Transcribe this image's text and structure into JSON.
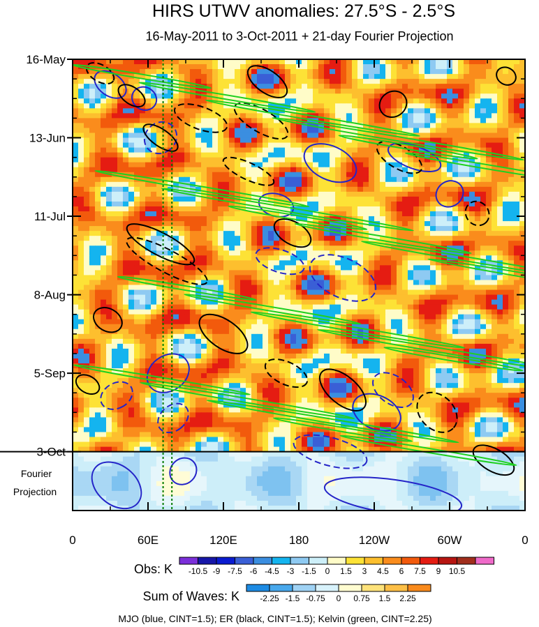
{
  "chart_data": {
    "type": "heatmap",
    "title": "HIRS UTWV anomalies: 27.5°S - 2.5°S",
    "subtitle": "16-May-2011 to 3-Oct-2011 + 21-day Fourier Projection",
    "y_ticks": [
      {
        "label": "16-May",
        "day": 0
      },
      {
        "label": "13-Jun",
        "day": 28
      },
      {
        "label": "11-Jul",
        "day": 56
      },
      {
        "label": "8-Aug",
        "day": 84
      },
      {
        "label": "5-Sep",
        "day": 112
      },
      {
        "label": "3-Oct",
        "day": 140
      }
    ],
    "ylim_days": [
      0,
      161
    ],
    "projection_start_day": 140,
    "projection_label_line1": "Fourier",
    "projection_label_line2": "Projection",
    "x_ticks": [
      {
        "label": "0",
        "lon": 0
      },
      {
        "label": "60E",
        "lon": 60
      },
      {
        "label": "120E",
        "lon": 120
      },
      {
        "label": "180",
        "lon": 180
      },
      {
        "label": "120W",
        "lon": 240
      },
      {
        "label": "60W",
        "lon": 300
      },
      {
        "label": "0",
        "lon": 360
      }
    ],
    "xlim_lon": [
      0,
      360
    ],
    "vertical_reference_lons": [
      72,
      79
    ],
    "obs_colorbar": {
      "label": "Obs: K",
      "levels": [
        "-10.5",
        "-9",
        "-7.5",
        "-6",
        "-4.5",
        "-3",
        "-1.5",
        "0",
        "1.5",
        "3",
        "4.5",
        "6",
        "7.5",
        "9",
        "10.5"
      ],
      "colors": [
        "#7b2fd9",
        "#1616a8",
        "#0a1bd0",
        "#3a5fd6",
        "#3b8ee0",
        "#14b4ef",
        "#8ecaf2",
        "#cdeff9",
        "#fffcc8",
        "#fde236",
        "#fdbf2e",
        "#fa8c1c",
        "#f25a0c",
        "#e51c12",
        "#b71511",
        "#a12e1c",
        "#ef6ac9"
      ]
    },
    "waves_colorbar": {
      "label": "Sum of Waves: K",
      "levels": [
        "-2.25",
        "-1.5",
        "-0.75",
        "0",
        "0.75",
        "1.5",
        "2.25"
      ],
      "colors": [
        "#1d8be3",
        "#48a8ec",
        "#9fd2f4",
        "#d8f2fb",
        "#fffcd0",
        "#fee27a",
        "#fdbf46",
        "#f98a1c"
      ]
    },
    "footnote": "MJO (blue, CINT=1.5); ER (black, CINT=1.5); Kelvin (green, CINT=2.25)",
    "series": [
      {
        "name": "MJO",
        "color": "#2424c8",
        "contour_interval": 1.5
      },
      {
        "name": "ER",
        "color": "#000000",
        "contour_interval": 1.5
      },
      {
        "name": "Kelvin",
        "color": "#1fd021",
        "contour_interval": 2.25
      }
    ]
  }
}
